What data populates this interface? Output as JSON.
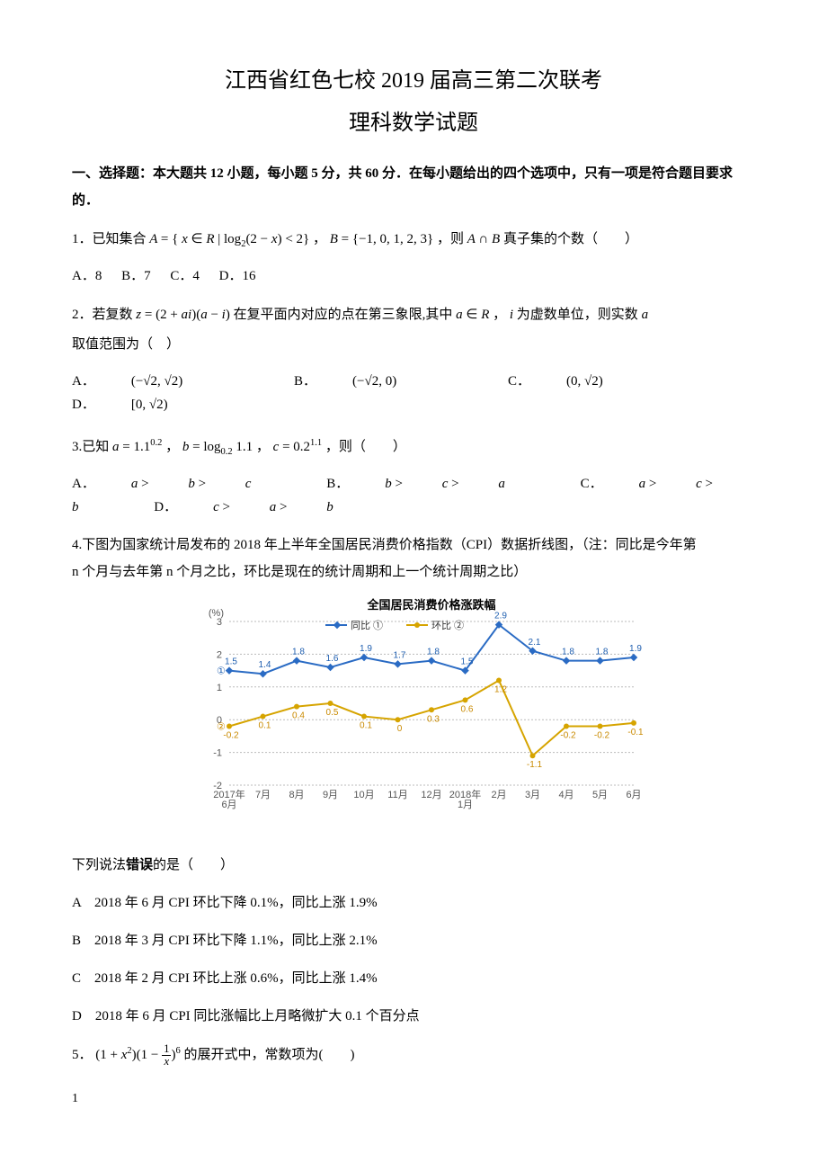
{
  "header": {
    "title": "江西省红色七校 2019 届高三第二次联考",
    "subtitle": "理科数学试题"
  },
  "section1": {
    "heading": "一、选择题：本大题共 12 小题，每小题 5 分，共 60 分．在每小题给出的四个选项中，只有一项是符合题目要求的．"
  },
  "q1": {
    "stem_pre": "1．已知集合 ",
    "stem_post": " 真子集的个数（　　）",
    "opts": {
      "A": "A．8",
      "B": "B．7",
      "C": "C．4",
      "D": "D．16"
    }
  },
  "q2": {
    "stem_pre": "2．若复数 ",
    "stem_mid": " 在复平面内对应的点在第三象限,其中 ",
    "stem_post1": " 为虚数单位，则实数 ",
    "stem_post2": " 取值范围为（　）",
    "opts": {
      "A_label": "A．",
      "B_label": "B．",
      "C_label": "C．",
      "D_label": "D．"
    }
  },
  "q3": {
    "stem_pre": "3.已知 ",
    "stem_post": "，则（　　）",
    "opts": {
      "A_label": "A．",
      "B_label": "B．",
      "C_label": "C．",
      "D_label": "D．"
    }
  },
  "q4": {
    "stem_line1": "4.下图为国家统计局发布的 2018 年上半年全国居民消费价格指数（CPI）数据折线图，（注：同比是今年第",
    "stem_line2": "n 个月与去年第 n 个月之比，环比是现在的统计周期和上一个统计周期之比）",
    "chart_title": "全国居民消费价格涨跌幅",
    "y_unit": "(%)",
    "legend": {
      "s1": "同比 ①",
      "s2": "环比 ②"
    },
    "x_lbl": [
      "2017年\n6月",
      "7月",
      "8月",
      "9月",
      "10月",
      "11月",
      "12月",
      "2018年\n1月",
      "2月",
      "3月",
      "4月",
      "5月",
      "6月"
    ],
    "s1": {
      "color": "#2a6bc4",
      "marker": "diamond",
      "values": [
        1.5,
        1.4,
        1.8,
        1.6,
        1.9,
        1.7,
        1.8,
        1.5,
        2.9,
        2.1,
        1.8,
        1.8,
        1.9
      ]
    },
    "s2": {
      "color": "#d6a400",
      "marker": "circle",
      "values": [
        -0.2,
        0.1,
        0.4,
        0.5,
        0.1,
        0.0,
        0.3,
        0.6,
        1.2,
        -1.1,
        -0.2,
        -0.2,
        -0.1
      ]
    },
    "y_ticks": [
      -2,
      -1,
      0,
      1,
      2,
      3
    ],
    "grid_color": "#bbbbbb",
    "bg": "#ffffff",
    "circle_markers": {
      "s1_at": 0,
      "s2_at": 0
    },
    "followup": "下列说法错误的是（　　）",
    "opts": {
      "A": "A　2018 年 6 月 CPI 环比下降 0.1%，同比上涨 1.9%",
      "B": "B　2018 年 3 月 CPI 环比下降 1.1%，同比上涨 2.1%",
      "C": "C　2018 年 2 月 CPI 环比上涨 0.6%，同比上涨 1.4%",
      "D": "D　2018 年 6 月 CPI 同比涨幅比上月略微扩大 0.1 个百分点"
    }
  },
  "q5": {
    "stem_pre": "5．",
    "stem_post": " 的展开式中，常数项为(　　)"
  },
  "page": "1"
}
